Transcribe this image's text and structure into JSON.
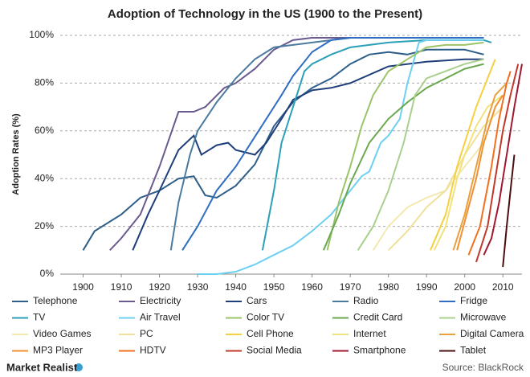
{
  "chart_data": {
    "type": "line",
    "title": "Adoption of Technology in the US (1900 to the Present)",
    "y_label": "Adoption Rates (%)",
    "xlim": [
      1894,
      2015
    ],
    "xticks": [
      1900,
      1910,
      1920,
      1930,
      1940,
      1950,
      1960,
      1970,
      1980,
      1990,
      2000,
      2010
    ],
    "ylim": [
      0,
      100
    ],
    "yticks": [
      {
        "value": 0,
        "label": "0%"
      },
      {
        "value": 20,
        "label": "20%"
      },
      {
        "value": 40,
        "label": "40%"
      },
      {
        "value": 60,
        "label": "60%"
      },
      {
        "value": 80,
        "label": "80%"
      },
      {
        "value": 100,
        "label": "100%"
      }
    ],
    "grid": true,
    "brand": "Market Realist",
    "source": "Source: BlackRock",
    "series": [
      {
        "name": "Telephone",
        "color": "#2e5f8a",
        "x": [
          1900,
          1903,
          1910,
          1915,
          1920,
          1925,
          1929,
          1932,
          1935,
          1940,
          1945,
          1950,
          1955,
          1960,
          1965,
          1970,
          1975,
          1980,
          1985,
          1990,
          1995,
          2000,
          2005
        ],
        "values": [
          10,
          18,
          25,
          32,
          35,
          40,
          41,
          33,
          32,
          37,
          46,
          62,
          72,
          78,
          82,
          88,
          92,
          93,
          92,
          94,
          94,
          94,
          92
        ]
      },
      {
        "name": "Electricity",
        "color": "#6a5a8e",
        "x": [
          1907,
          1910,
          1915,
          1920,
          1925,
          1929,
          1932,
          1937,
          1940,
          1945,
          1950,
          1955,
          1960,
          1970,
          1980,
          2005
        ],
        "values": [
          10,
          15,
          25,
          45,
          68,
          68,
          70,
          78,
          80,
          86,
          94,
          98,
          99,
          99,
          99,
          99
        ]
      },
      {
        "name": "Cars",
        "color": "#1f3f7a",
        "x": [
          1913,
          1917,
          1920,
          1925,
          1929,
          1931,
          1935,
          1938,
          1940,
          1945,
          1948,
          1952,
          1955,
          1960,
          1965,
          1970,
          1980,
          1990,
          2000,
          2005
        ],
        "values": [
          10,
          25,
          35,
          52,
          58,
          50,
          54,
          55,
          52,
          50,
          55,
          65,
          73,
          77,
          78,
          80,
          87,
          89,
          90,
          90
        ]
      },
      {
        "name": "Radio",
        "color": "#4a7a9e",
        "x": [
          1923,
          1925,
          1928,
          1930,
          1935,
          1940,
          1945,
          1950,
          1955,
          1960,
          1970,
          1980,
          2000
        ],
        "values": [
          10,
          30,
          50,
          60,
          72,
          82,
          90,
          95,
          96,
          97,
          99,
          99,
          99
        ]
      },
      {
        "name": "Fridge",
        "color": "#2f6ec0",
        "x": [
          1926,
          1930,
          1935,
          1940,
          1944,
          1948,
          1952,
          1955,
          1960,
          1965,
          1970,
          2005
        ],
        "values": [
          10,
          20,
          35,
          45,
          55,
          65,
          75,
          83,
          93,
          98,
          99,
          99
        ]
      },
      {
        "name": "TV",
        "color": "#2aa0b8",
        "x": [
          1947,
          1950,
          1952,
          1955,
          1958,
          1960,
          1965,
          1970,
          1980,
          1990,
          2000,
          2005,
          2007
        ],
        "values": [
          10,
          35,
          55,
          70,
          85,
          88,
          92,
          95,
          97,
          98,
          98,
          98,
          97
        ]
      },
      {
        "name": "Air Travel",
        "color": "#6dd0f0",
        "x": [
          1930,
          1935,
          1940,
          1945,
          1950,
          1955,
          1960,
          1965,
          1970,
          1973,
          1975,
          1978,
          1980,
          1983,
          1985,
          1988,
          1990,
          2005
        ],
        "values": [
          0,
          0,
          1,
          4,
          8,
          12,
          18,
          25,
          35,
          41,
          43,
          55,
          58,
          65,
          80,
          97,
          98,
          98
        ]
      },
      {
        "name": "Color TV",
        "color": "#9bc46a",
        "x": [
          1964,
          1967,
          1970,
          1973,
          1976,
          1980,
          1985,
          1990,
          1995,
          2000,
          2005
        ],
        "values": [
          10,
          30,
          45,
          62,
          75,
          85,
          90,
          95,
          96,
          96,
          97
        ]
      },
      {
        "name": "Credit Card",
        "color": "#6aa84f",
        "x": [
          1963,
          1967,
          1970,
          1975,
          1980,
          1985,
          1990,
          1995,
          2000,
          2005
        ],
        "values": [
          10,
          25,
          38,
          55,
          65,
          72,
          78,
          82,
          86,
          88
        ]
      },
      {
        "name": "Microwave",
        "color": "#a9d08e",
        "x": [
          1972,
          1976,
          1980,
          1984,
          1987,
          1990,
          1995,
          2000,
          2005
        ],
        "values": [
          10,
          20,
          35,
          55,
          75,
          82,
          85,
          88,
          90
        ]
      },
      {
        "name": "Video Games",
        "color": "#f3e9b0",
        "x": [
          1976,
          1980,
          1985,
          1990,
          1995,
          2000,
          2005
        ],
        "values": [
          10,
          20,
          28,
          32,
          35,
          45,
          55
        ]
      },
      {
        "name": "PC",
        "color": "#efe09a",
        "x": [
          1980,
          1985,
          1990,
          1995,
          2000,
          2005,
          2010
        ],
        "values": [
          10,
          18,
          28,
          35,
          50,
          62,
          70
        ]
      },
      {
        "name": "Cell Phone",
        "color": "#f5d040",
        "x": [
          1991,
          1995,
          1998,
          2000,
          2003,
          2006,
          2008
        ],
        "values": [
          10,
          25,
          45,
          55,
          70,
          82,
          90
        ]
      },
      {
        "name": "Internet",
        "color": "#f2e27a",
        "x": [
          1992,
          1995,
          1998,
          2000,
          2003,
          2006,
          2010
        ],
        "values": [
          10,
          20,
          40,
          50,
          62,
          70,
          75
        ]
      },
      {
        "name": "Digital Camera",
        "color": "#e8a040",
        "x": [
          1997,
          2000,
          2003,
          2006,
          2008,
          2011
        ],
        "values": [
          10,
          25,
          45,
          65,
          75,
          80
        ]
      },
      {
        "name": "MP3 Player",
        "color": "#f09030",
        "x": [
          1998,
          2003,
          2005,
          2008,
          2010
        ],
        "values": [
          10,
          40,
          55,
          70,
          75
        ]
      },
      {
        "name": "HDTV",
        "color": "#f07020",
        "x": [
          2001,
          2004,
          2007,
          2009,
          2011,
          2012
        ],
        "values": [
          8,
          20,
          45,
          65,
          80,
          85
        ]
      },
      {
        "name": "Social Media",
        "color": "#c0392b",
        "x": [
          2003,
          2006,
          2008,
          2010,
          2012,
          2014
        ],
        "values": [
          5,
          20,
          40,
          60,
          75,
          88
        ]
      },
      {
        "name": "Smartphone",
        "color": "#a01830",
        "x": [
          2005,
          2007,
          2009,
          2011,
          2013,
          2015
        ],
        "values": [
          8,
          15,
          30,
          50,
          70,
          88
        ]
      },
      {
        "name": "Tablet",
        "color": "#4a1010",
        "x": [
          2010,
          2011,
          2012,
          2013
        ],
        "values": [
          3,
          20,
          35,
          50
        ]
      }
    ]
  }
}
